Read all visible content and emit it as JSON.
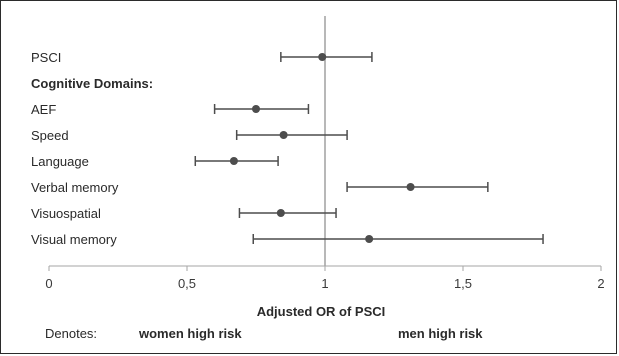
{
  "chart_data": {
    "type": "forest",
    "rows": [
      {
        "label": "PSCI",
        "or": 0.99,
        "ci_low": 0.84,
        "ci_high": 1.17,
        "bold": false
      },
      {
        "label": "Cognitive Domains:",
        "or": null,
        "ci_low": null,
        "ci_high": null,
        "bold": true
      },
      {
        "label": "AEF",
        "or": 0.75,
        "ci_low": 0.6,
        "ci_high": 0.94,
        "bold": false
      },
      {
        "label": "Speed",
        "or": 0.85,
        "ci_low": 0.68,
        "ci_high": 1.08,
        "bold": false
      },
      {
        "label": "Language",
        "or": 0.67,
        "ci_low": 0.53,
        "ci_high": 0.83,
        "bold": false
      },
      {
        "label": "Verbal memory",
        "or": 1.31,
        "ci_low": 1.08,
        "ci_high": 1.59,
        "bold": false
      },
      {
        "label": "Visuospatial",
        "or": 0.84,
        "ci_low": 0.69,
        "ci_high": 1.04,
        "bold": false
      },
      {
        "label": "Visual memory",
        "or": 1.16,
        "ci_low": 0.74,
        "ci_high": 1.79,
        "bold": false
      }
    ],
    "xlabel": "Adjusted OR of PSCI",
    "xlim": [
      0,
      2
    ],
    "xticks": [
      0,
      0.5,
      1,
      1.5,
      2
    ],
    "xtick_labels": [
      "0",
      "0,5",
      "1",
      "1,5",
      "2"
    ],
    "reference_line": 1,
    "grid": false
  },
  "legend": {
    "prefix": "Denotes:",
    "left_label": "women high risk",
    "right_label": "men high risk"
  },
  "colors": {
    "marker": "#4d4d4d",
    "reference_line": "#9a9a9a",
    "axis": "#a6a6a6",
    "text": "#2a2a2a"
  }
}
